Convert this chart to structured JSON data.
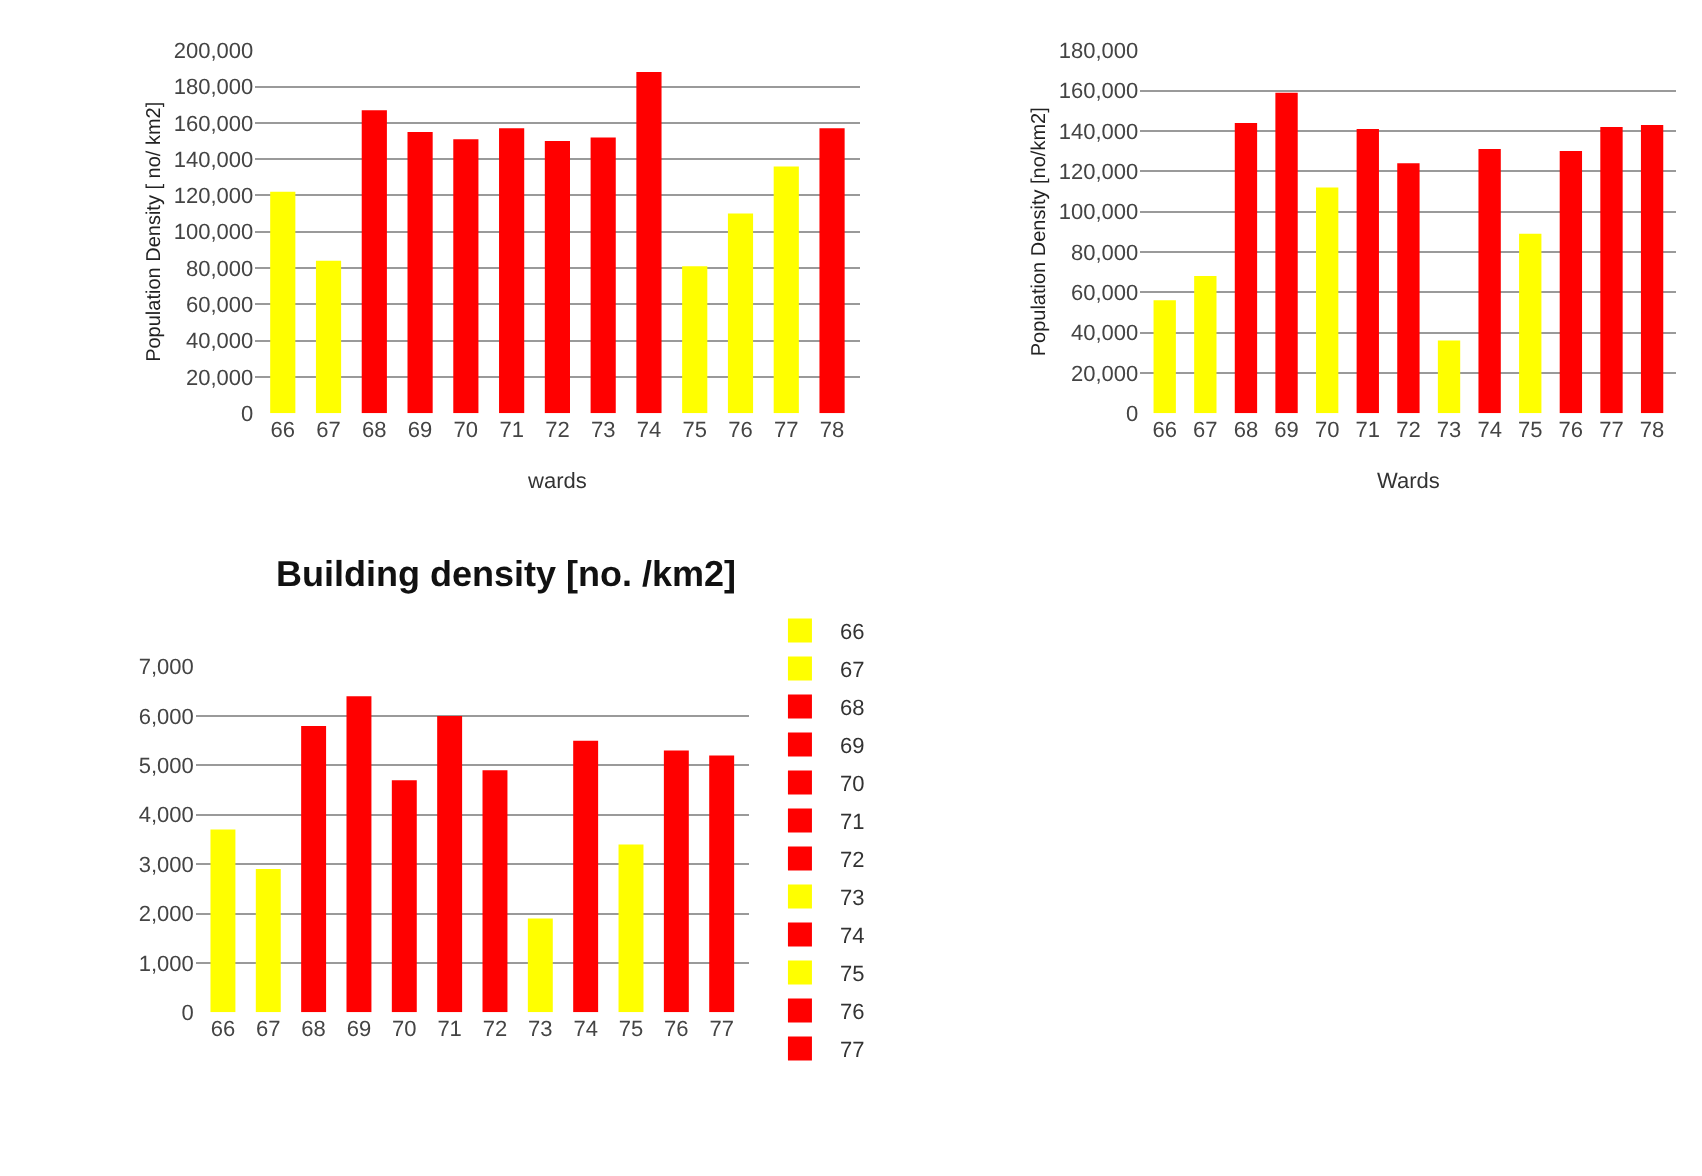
{
  "chart_data": [
    {
      "type": "bar",
      "xlabel": "wards",
      "ylabel": "Population Density [ no/ km2]",
      "categories": [
        "66",
        "67",
        "68",
        "69",
        "70",
        "71",
        "72",
        "73",
        "74",
        "75",
        "76",
        "77",
        "78"
      ],
      "values": [
        122000,
        84000,
        167000,
        155000,
        151000,
        157000,
        150000,
        152000,
        188000,
        81000,
        110000,
        136000,
        157000
      ],
      "colors": [
        "#ffff00",
        "#ffff00",
        "#ff0000",
        "#ff0000",
        "#ff0000",
        "#ff0000",
        "#ff0000",
        "#ff0000",
        "#ff0000",
        "#ffff00",
        "#ffff00",
        "#ffff00",
        "#ff0000"
      ],
      "ylim": [
        0,
        200000
      ],
      "yticks": [
        0,
        {
          "value": 20000,
          "label": "20,000"
        },
        {
          "value": 40000,
          "label": "40,000"
        },
        {
          "value": 60000,
          "label": "60,000"
        },
        {
          "value": 80000,
          "label": "80,000"
        },
        {
          "value": 100000,
          "label": "100,000"
        },
        {
          "value": 120000,
          "label": "120,000"
        },
        {
          "value": 140000,
          "label": "140,000"
        },
        {
          "value": 160000,
          "label": "160,000"
        },
        {
          "value": 180000,
          "label": "180,000"
        },
        {
          "value": 200000,
          "label": "200,000"
        }
      ],
      "grid": "y",
      "legend": false
    },
    {
      "type": "bar",
      "xlabel": "Wards",
      "ylabel": "Population Density [no/km2]",
      "categories": [
        "66",
        "67",
        "68",
        "69",
        "70",
        "71",
        "72",
        "73",
        "74",
        "75",
        "76",
        "77",
        "78"
      ],
      "values": [
        56000,
        68000,
        144000,
        159000,
        112000,
        141000,
        124000,
        36000,
        131000,
        89000,
        130000,
        142000,
        143000
      ],
      "colors": [
        "#ffff00",
        "#ffff00",
        "#ff0000",
        "#ff0000",
        "#ffff00",
        "#ff0000",
        "#ff0000",
        "#ffff00",
        "#ff0000",
        "#ffff00",
        "#ff0000",
        "#ff0000",
        "#ff0000"
      ],
      "ylim": [
        0,
        180000
      ],
      "yticks": [
        0,
        {
          "value": 20000,
          "label": "20,000"
        },
        {
          "value": 40000,
          "label": "40,000"
        },
        {
          "value": 60000,
          "label": "60,000"
        },
        {
          "value": 80000,
          "label": "80,000"
        },
        {
          "value": 100000,
          "label": "100,000"
        },
        {
          "value": 120000,
          "label": "120,000"
        },
        {
          "value": 140000,
          "label": "140,000"
        },
        {
          "value": 160000,
          "label": "160,000"
        },
        {
          "value": 180000,
          "label": "180,000"
        }
      ],
      "grid": "y",
      "legend": false
    },
    {
      "type": "bar",
      "title": "Building density [no. /km2]",
      "categories": [
        "66",
        "67",
        "68",
        "69",
        "70",
        "71",
        "72",
        "73",
        "74",
        "75",
        "76",
        "77"
      ],
      "series": [
        {
          "name": "66",
          "color": "#ffff00",
          "values": [
            3700,
            null,
            null,
            null,
            null,
            null,
            null,
            null,
            null,
            null,
            null,
            null
          ]
        },
        {
          "name": "67",
          "color": "#ffff00",
          "values": [
            null,
            2900,
            null,
            null,
            null,
            null,
            null,
            null,
            null,
            null,
            null,
            null
          ]
        },
        {
          "name": "68",
          "color": "#ff0000",
          "values": [
            null,
            null,
            5800,
            null,
            null,
            null,
            null,
            null,
            null,
            null,
            null,
            null
          ]
        },
        {
          "name": "69",
          "color": "#ff0000",
          "values": [
            null,
            null,
            null,
            6400,
            null,
            null,
            null,
            null,
            null,
            null,
            null,
            null
          ]
        },
        {
          "name": "70",
          "color": "#ff0000",
          "values": [
            null,
            null,
            null,
            null,
            4700,
            null,
            null,
            null,
            null,
            null,
            null,
            null
          ]
        },
        {
          "name": "71",
          "color": "#ff0000",
          "values": [
            null,
            null,
            null,
            null,
            null,
            6000,
            null,
            null,
            null,
            null,
            null,
            null
          ]
        },
        {
          "name": "72",
          "color": "#ff0000",
          "values": [
            null,
            null,
            null,
            null,
            null,
            null,
            4900,
            null,
            null,
            null,
            null,
            null
          ]
        },
        {
          "name": "73",
          "color": "#ffff00",
          "values": [
            null,
            null,
            null,
            null,
            null,
            null,
            null,
            1900,
            null,
            null,
            null,
            null
          ]
        },
        {
          "name": "74",
          "color": "#ff0000",
          "values": [
            null,
            null,
            null,
            null,
            null,
            null,
            null,
            null,
            5500,
            null,
            null,
            null
          ]
        },
        {
          "name": "75",
          "color": "#ffff00",
          "values": [
            null,
            null,
            null,
            null,
            null,
            null,
            null,
            null,
            null,
            3400,
            null,
            null
          ]
        },
        {
          "name": "76",
          "color": "#ff0000",
          "values": [
            null,
            null,
            null,
            null,
            null,
            null,
            null,
            null,
            null,
            null,
            5300,
            null
          ]
        },
        {
          "name": "77",
          "color": "#ff0000",
          "values": [
            null,
            null,
            null,
            null,
            null,
            null,
            null,
            null,
            null,
            null,
            null,
            5200
          ]
        }
      ],
      "ylim": [
        0,
        7000
      ],
      "yticks": [
        0,
        {
          "value": 1000,
          "label": "1,000"
        },
        {
          "value": 2000,
          "label": "2,000"
        },
        {
          "value": 3000,
          "label": "3,000"
        },
        {
          "value": 4000,
          "label": "4,000"
        },
        {
          "value": 5000,
          "label": "5,000"
        },
        {
          "value": 6000,
          "label": "6,000"
        },
        {
          "value": 7000,
          "label": "7,000"
        }
      ],
      "grid": "y",
      "legend": "right"
    }
  ]
}
